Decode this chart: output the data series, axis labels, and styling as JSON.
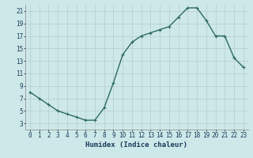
{
  "x": [
    0,
    1,
    2,
    3,
    4,
    5,
    6,
    7,
    8,
    9,
    10,
    11,
    12,
    13,
    14,
    15,
    16,
    17,
    18,
    19,
    20,
    21,
    22,
    23
  ],
  "y": [
    8,
    7,
    6,
    5,
    4.5,
    4,
    3.5,
    3.5,
    5.5,
    9.5,
    14,
    16,
    17,
    17.5,
    18,
    18.5,
    20,
    21.5,
    21.5,
    19.5,
    17,
    17,
    13.5,
    12
  ],
  "line_color": "#2d6b5e",
  "marker_color": "#2d6b5e",
  "bg_color": "#cde8e8",
  "grid_color": "#b8cccc",
  "xlabel": "Humidex (Indice chaleur)",
  "xlim": [
    -0.5,
    23.5
  ],
  "ylim": [
    2,
    22
  ],
  "xticks": [
    0,
    1,
    2,
    3,
    4,
    5,
    6,
    7,
    8,
    9,
    10,
    11,
    12,
    13,
    14,
    15,
    16,
    17,
    18,
    19,
    20,
    21,
    22,
    23
  ],
  "yticks": [
    3,
    5,
    7,
    9,
    11,
    13,
    15,
    17,
    19,
    21
  ],
  "xlabel_fontsize": 6.5,
  "tick_fontsize": 5.5,
  "linewidth": 1.0,
  "markersize": 2.5
}
